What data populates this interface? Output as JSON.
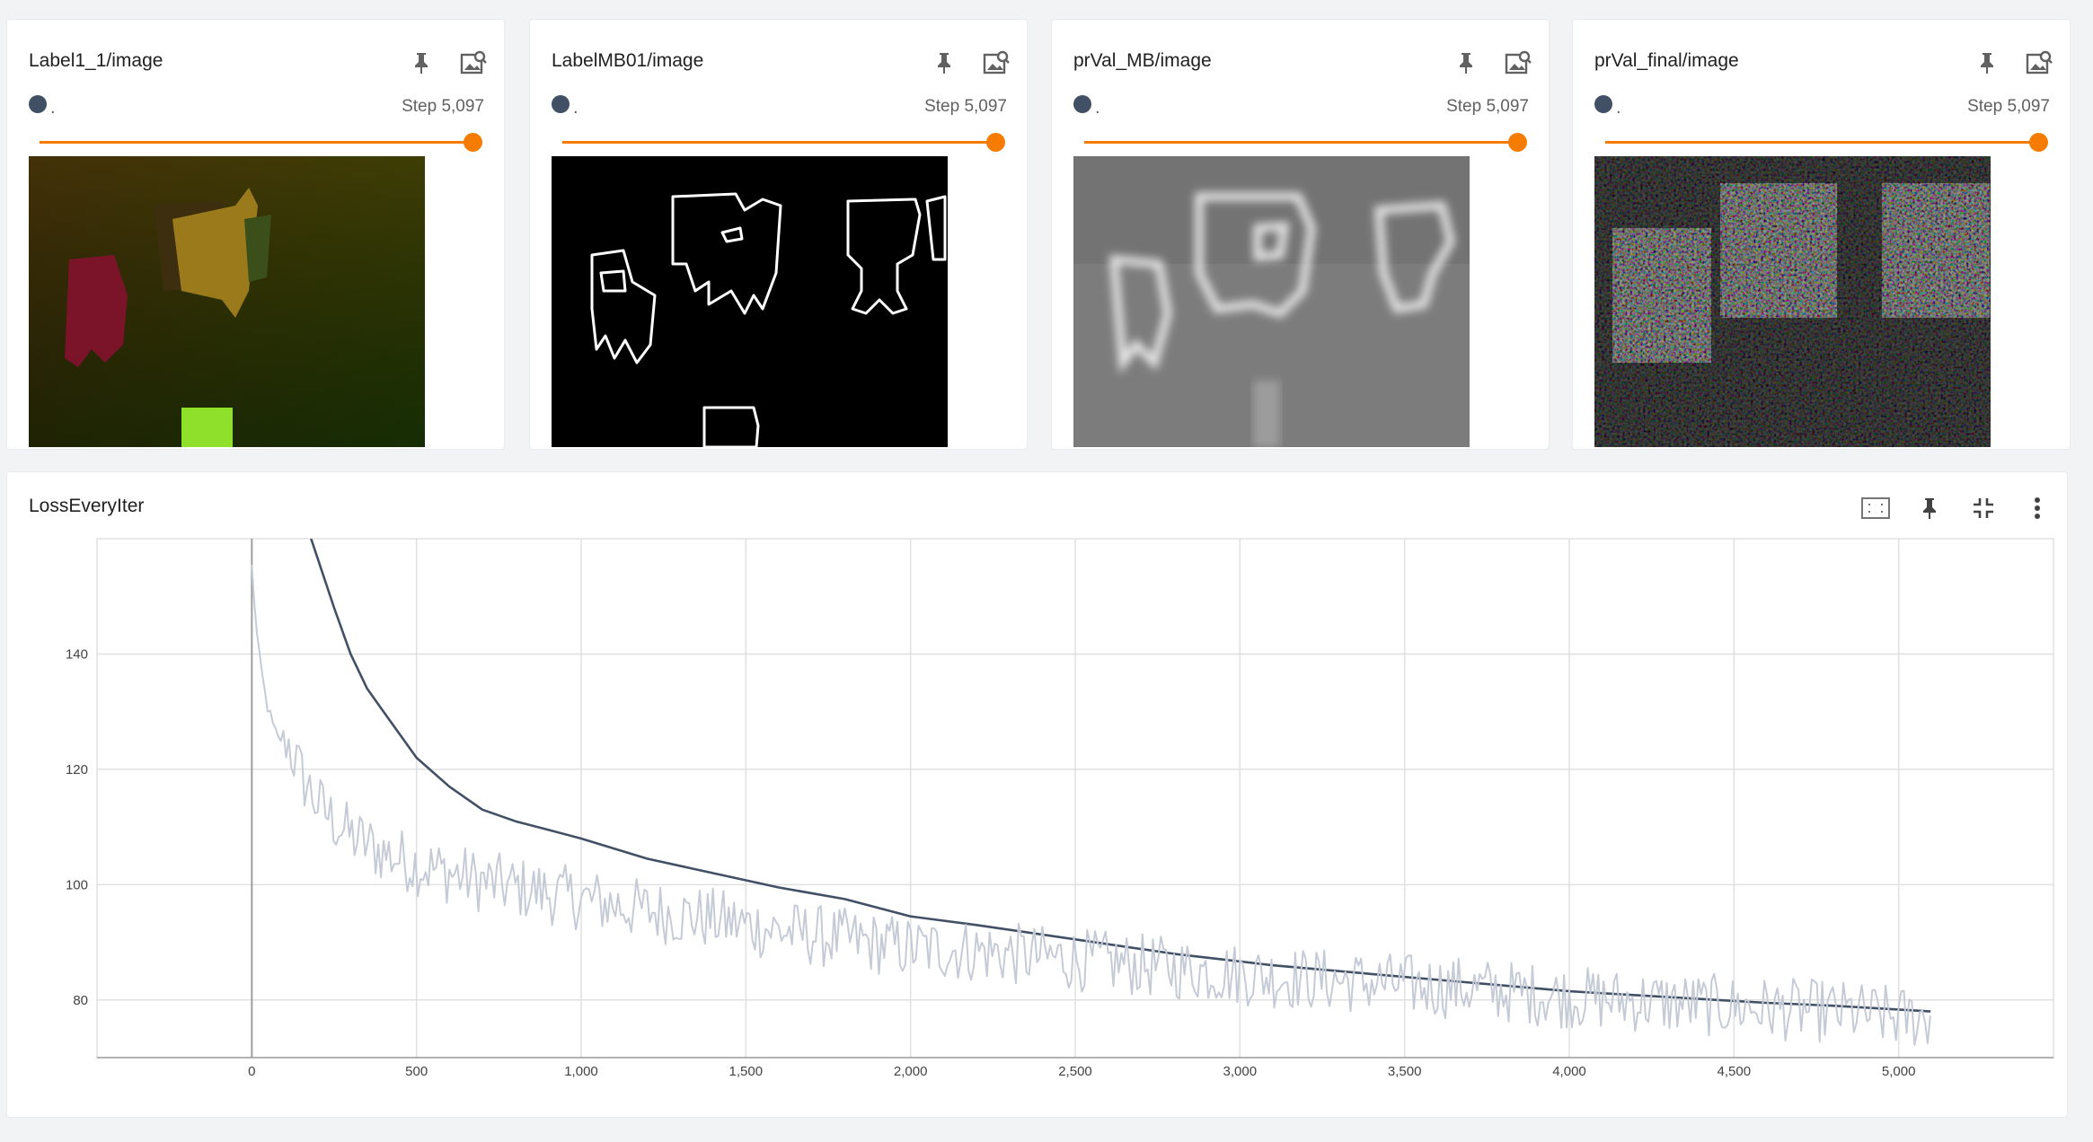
{
  "image_cards": [
    {
      "title": "Label1_1/image",
      "run_name": ".",
      "step_label": "Step 5,097"
    },
    {
      "title": "LabelMB01/image",
      "run_name": ".",
      "step_label": "Step 5,097"
    },
    {
      "title": "prVal_MB/image",
      "run_name": ".",
      "step_label": "Step 5,097"
    },
    {
      "title": "prVal_final/image",
      "run_name": ".",
      "step_label": "Step 5,097"
    }
  ],
  "loss_card": {
    "title": "LossEveryIter"
  },
  "colors": {
    "accent": "#f57c00",
    "run": "#425066",
    "raw": "#c5cbd6"
  },
  "chart_data": {
    "type": "line",
    "title": "LossEveryIter",
    "xlabel": "",
    "ylabel": "",
    "x_ticks": [
      "0",
      "500",
      "1,000",
      "1,500",
      "2,000",
      "2,500",
      "3,000",
      "3,500",
      "4,000",
      "4,500",
      "5,000"
    ],
    "y_ticks": [
      "80",
      "100",
      "120",
      "140"
    ],
    "xlim": [
      -470,
      5470
    ],
    "ylim": [
      70,
      160
    ],
    "grid": true,
    "series": [
      {
        "name": "",
        "role": "smoothed",
        "color": "#425066",
        "x": [
          180,
          250,
          300,
          350,
          400,
          500,
          600,
          700,
          800,
          900,
          1000,
          1200,
          1400,
          1600,
          1800,
          2000,
          2200,
          2500,
          2800,
          3100,
          3400,
          3700,
          4000,
          4300,
          4600,
          4800,
          5097
        ],
        "y": [
          160,
          148,
          140,
          134,
          130,
          122,
          117,
          113,
          111,
          109.5,
          108,
          104.5,
          102,
          99.5,
          97.5,
          94.5,
          93,
          90.5,
          88,
          86,
          84.5,
          83,
          81.5,
          80.5,
          79.5,
          79,
          78
        ]
      },
      {
        "name": "",
        "role": "raw",
        "color": "#c5cbd6",
        "x": [
          0,
          20,
          40,
          60,
          80,
          100,
          150,
          200,
          250,
          300,
          350,
          400,
          500,
          600,
          700,
          800,
          900,
          1000,
          1200,
          1400,
          1600,
          1800,
          2000,
          2200,
          2500,
          2800,
          3100,
          3400,
          3700,
          4000,
          4300,
          4600,
          4800,
          5000,
          5097
        ],
        "y": [
          155,
          140,
          133,
          128,
          125,
          126,
          119,
          114,
          111,
          108.5,
          107,
          105.5,
          103.5,
          102,
          100.5,
          99.5,
          98.5,
          97.5,
          95.5,
          94,
          92,
          90.5,
          89,
          88.5,
          87,
          85.5,
          84,
          83,
          82,
          80.5,
          79.5,
          78.5,
          78,
          77,
          77
        ]
      }
    ]
  }
}
